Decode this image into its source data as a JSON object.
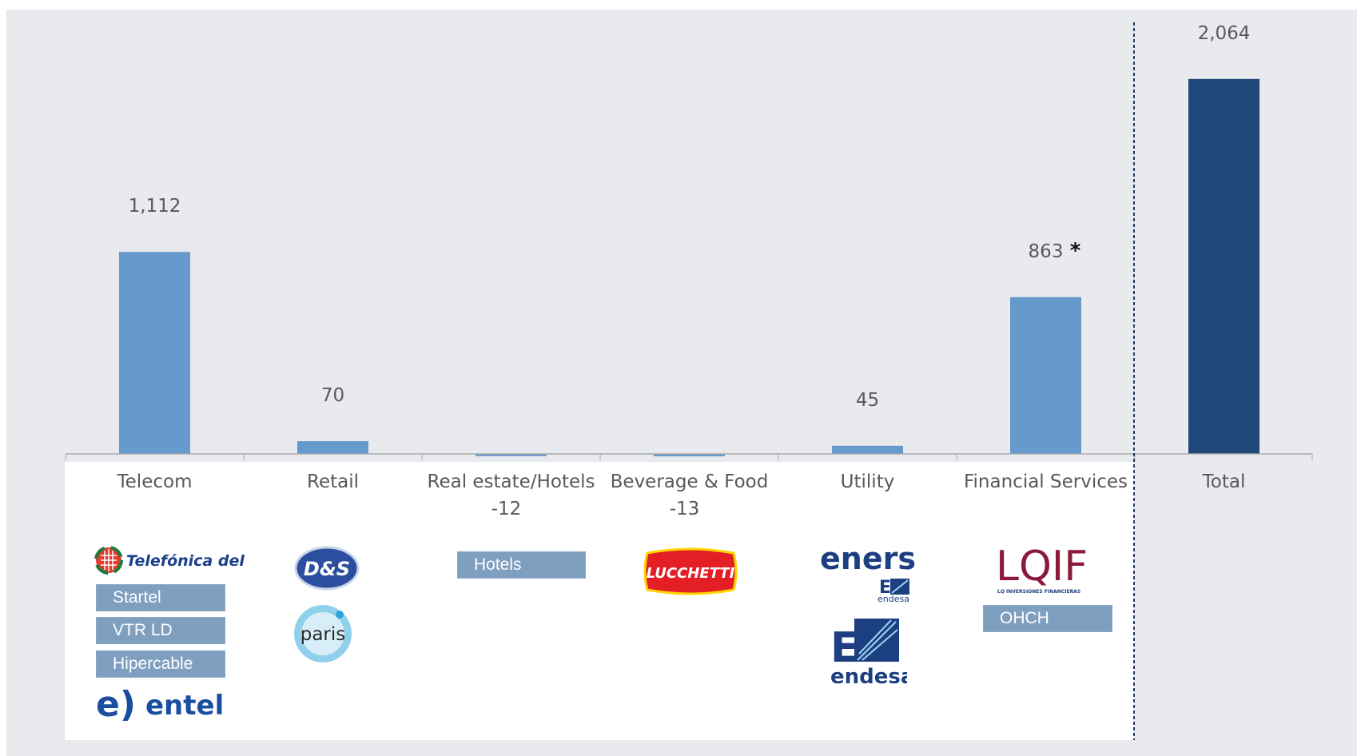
{
  "chart_data": {
    "type": "bar",
    "categories": [
      "Telecom",
      "Retail",
      "Real estate/Hotels",
      "Beverage & Food",
      "Utility",
      "Financial Services",
      "Total"
    ],
    "values": [
      1112,
      70,
      -12,
      -13,
      45,
      863,
      2064
    ],
    "data_labels": [
      "1,112",
      "70",
      "-12",
      "-13",
      "45",
      "863",
      "2,064"
    ],
    "annotations": {
      "financial_services_marker": "*"
    },
    "ylim": [
      -20,
      2160
    ],
    "colors": {
      "bar": "#6699cc",
      "total_bar": "#1f4778",
      "axis": "#aaaaaa",
      "label": "#595959",
      "divider": "#1f3864"
    },
    "title": "",
    "xlabel": "",
    "ylabel": "",
    "grid": false,
    "legend": "none"
  },
  "companies": {
    "telecom": {
      "logo_top": "Telefónica del Sur",
      "logo_top_icon": "globe-icon",
      "subsidiaries": [
        "Startel",
        "VTR LD",
        "Hipercable"
      ],
      "logo_bottom": "entel",
      "logo_bottom_mark": "e)"
    },
    "retail": {
      "logos": [
        "D&S",
        "paris"
      ]
    },
    "real_estate": {
      "subsidiaries": [
        "Hotels"
      ]
    },
    "beverage": {
      "logo": "LUCCHETTI"
    },
    "utility": {
      "logo_top": "enersis",
      "logo_top_sub": "endesa",
      "logo_bottom": "endesa",
      "logo_mark": "E"
    },
    "financial": {
      "logo": "LQIF",
      "logo_sub": "LQ INVERSIONES FINANCIERAS",
      "subsidiaries": [
        "OHCH"
      ]
    }
  },
  "colors": {
    "background": "#e8eaee",
    "sub_box": "#7f9fc0",
    "telefonica_blue": "#1d3f8a",
    "entel_blue": "#1a4fa0",
    "enersis_navy": "#1c3f82",
    "lqif_maroon": "#8b1a3a",
    "lucchetti_red": "#e31e24"
  }
}
